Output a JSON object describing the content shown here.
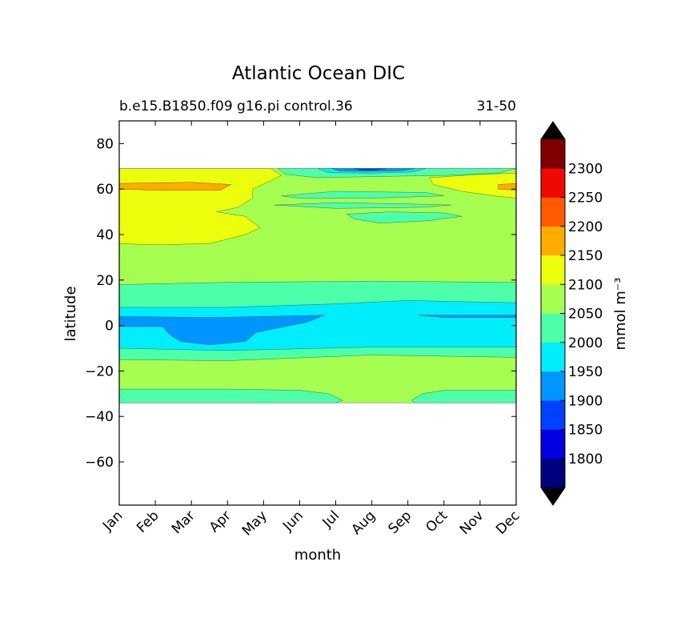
{
  "chart_data": {
    "type": "heatmap",
    "title": "Atlantic Ocean DIC",
    "subtitle_left": "b.e15.B1850.f09 g16.pi control.36",
    "subtitle_right": "31-50",
    "xlabel": "month",
    "ylabel": "latitude",
    "x_ticks": [
      "Jan",
      "Feb",
      "Mar",
      "Apr",
      "May",
      "Jun",
      "Jul",
      "Aug",
      "Sep",
      "Oct",
      "Nov",
      "Dec"
    ],
    "y_ticks": [
      80,
      60,
      40,
      20,
      0,
      -20,
      -40,
      -60
    ],
    "y_tick_labels": [
      "80",
      "60",
      "40",
      "20",
      "0",
      "−20",
      "−40",
      "−60"
    ],
    "xlim": [
      0,
      11
    ],
    "ylim": [
      -79,
      90
    ],
    "data_lat_range": [
      -34,
      69
    ],
    "colorbar": {
      "label": "mmol m⁻³",
      "levels": [
        1750,
        1800,
        1850,
        1900,
        1950,
        2000,
        2050,
        2100,
        2150,
        2200,
        2250,
        2300,
        2350
      ],
      "tick_values": [
        1800,
        1850,
        1900,
        1950,
        2000,
        2050,
        2100,
        2150,
        2200,
        2250,
        2300
      ],
      "tick_labels": [
        "1800",
        "1850",
        "1900",
        "1950",
        "2000",
        "2050",
        "2100",
        "2150",
        "2200",
        "2250",
        "2300"
      ],
      "colors": [
        "#00007f",
        "#0000e0",
        "#0040ff",
        "#0095ff",
        "#00eefc",
        "#4dffa9",
        "#a6ff50",
        "#ebff0c",
        "#ffab00",
        "#ff5a00",
        "#ee0a00",
        "#7f0000"
      ],
      "extend_low_color": "#000000",
      "extend_high_color": "#000000"
    },
    "regions": [
      {
        "name": "band-2050-2100-south",
        "level": 2050,
        "points": [
          [
            0,
            -34
          ],
          [
            11,
            -34
          ],
          [
            11,
            69
          ],
          [
            0,
            69
          ]
        ]
      },
      {
        "name": "band-2000-2050-south",
        "level": 2000,
        "points": [
          [
            0,
            -34
          ],
          [
            6,
            -34
          ],
          [
            6.2,
            -33
          ],
          [
            5.8,
            -30
          ],
          [
            5,
            -28.5
          ],
          [
            3,
            -28
          ],
          [
            0,
            -28
          ]
        ]
      },
      {
        "name": "band-2000-2050-south-east",
        "level": 2000,
        "points": [
          [
            8.2,
            -34
          ],
          [
            11,
            -34
          ],
          [
            11,
            -28.5
          ],
          [
            9,
            -28.5
          ],
          [
            8.4,
            -30
          ],
          [
            8.1,
            -33
          ]
        ]
      },
      {
        "name": "band-2000-2050-eq",
        "level": 2000,
        "points": [
          [
            0,
            -15
          ],
          [
            3,
            -15.5
          ],
          [
            7,
            -13
          ],
          [
            11,
            -14
          ],
          [
            11,
            19
          ],
          [
            7,
            19.5
          ],
          [
            3,
            19
          ],
          [
            0,
            18
          ]
        ]
      },
      {
        "name": "band-1950-2000-eq",
        "level": 1950,
        "points": [
          [
            0,
            -10
          ],
          [
            3,
            -11
          ],
          [
            7,
            -9.5
          ],
          [
            11,
            -9.5
          ],
          [
            11,
            10
          ],
          [
            8,
            11
          ],
          [
            6,
            9.5
          ],
          [
            3,
            8
          ],
          [
            0,
            8
          ]
        ]
      },
      {
        "name": "band-1900-1950-eq",
        "level": 1900,
        "points": [
          [
            0,
            4
          ],
          [
            2.5,
            3.5
          ],
          [
            5.7,
            4.5
          ],
          [
            5.2,
            1.5
          ],
          [
            3.8,
            -3
          ],
          [
            3.5,
            -7
          ],
          [
            2.5,
            -8.5
          ],
          [
            1.7,
            -7
          ],
          [
            1.4,
            -4
          ],
          [
            1.2,
            -0.5
          ],
          [
            0,
            -0.5
          ]
        ]
      },
      {
        "name": "band-1900-1950-eq-east",
        "level": 1900,
        "points": [
          [
            8.3,
            4.5
          ],
          [
            11,
            4.5
          ],
          [
            11,
            3.5
          ],
          [
            9,
            3.5
          ]
        ]
      },
      {
        "name": "band-2000-2050-north-1",
        "level": 2000,
        "points": [
          [
            4.4,
            69
          ],
          [
            11,
            69
          ],
          [
            10.5,
            67
          ],
          [
            9,
            66
          ],
          [
            7,
            65.5
          ],
          [
            5.5,
            65
          ],
          [
            4.6,
            66.5
          ]
        ]
      },
      {
        "name": "band-2000-2050-north-2",
        "level": 2000,
        "points": [
          [
            4.5,
            57
          ],
          [
            6,
            59
          ],
          [
            8.5,
            58.5
          ],
          [
            9,
            57
          ],
          [
            7,
            56
          ],
          [
            5,
            56
          ]
        ]
      },
      {
        "name": "band-2000-2050-north-3",
        "level": 2000,
        "points": [
          [
            4.3,
            53
          ],
          [
            6,
            54
          ],
          [
            8,
            53.5
          ],
          [
            9.2,
            53
          ],
          [
            8.5,
            52
          ],
          [
            6,
            51.5
          ]
        ]
      },
      {
        "name": "band-2000-2050-north-4",
        "level": 2000,
        "points": [
          [
            6.3,
            49
          ],
          [
            7.5,
            50
          ],
          [
            9,
            49.5
          ],
          [
            9.5,
            48
          ],
          [
            8.5,
            46
          ],
          [
            7.2,
            45
          ],
          [
            6.5,
            47
          ]
        ]
      },
      {
        "name": "band-1950-2000-north",
        "level": 1950,
        "points": [
          [
            5.5,
            69
          ],
          [
            8.5,
            69
          ],
          [
            8.1,
            67.5
          ],
          [
            7,
            67
          ],
          [
            5.8,
            67.2
          ]
        ]
      },
      {
        "name": "band-1900-1950-north",
        "level": 1900,
        "points": [
          [
            5.9,
            69
          ],
          [
            8.2,
            69
          ],
          [
            7.8,
            68
          ],
          [
            6.8,
            67.8
          ],
          [
            6.1,
            68
          ]
        ]
      },
      {
        "name": "band-1850-1900-north",
        "level": 1850,
        "points": [
          [
            6.5,
            69
          ],
          [
            7.4,
            69
          ],
          [
            7.1,
            68.3
          ],
          [
            6.7,
            68.3
          ]
        ]
      },
      {
        "name": "band-2100-2150-north-west",
        "level": 2100,
        "points": [
          [
            0,
            69
          ],
          [
            4.2,
            69
          ],
          [
            4.3,
            68
          ],
          [
            4.5,
            66
          ],
          [
            4.1,
            63
          ],
          [
            3.7,
            60
          ],
          [
            3.7,
            56
          ],
          [
            3.3,
            52
          ],
          [
            2.7,
            50
          ],
          [
            3.5,
            48
          ],
          [
            3.9,
            43
          ],
          [
            3.5,
            40
          ],
          [
            2.5,
            36
          ],
          [
            1,
            35.5
          ],
          [
            0,
            36
          ]
        ]
      },
      {
        "name": "band-2100-2150-north-east",
        "level": 2100,
        "points": [
          [
            11,
            67
          ],
          [
            10,
            66.5
          ],
          [
            8.6,
            65
          ],
          [
            8.7,
            62
          ],
          [
            9.5,
            59
          ],
          [
            10.4,
            57
          ],
          [
            11,
            56
          ]
        ]
      },
      {
        "name": "band-2150-2200-north-west",
        "level": 2150,
        "points": [
          [
            0,
            62.5
          ],
          [
            2,
            63
          ],
          [
            3.1,
            62
          ],
          [
            2.8,
            59.5
          ],
          [
            1,
            59.5
          ],
          [
            0,
            60
          ]
        ]
      },
      {
        "name": "band-2150-2200-north-east",
        "level": 2150,
        "points": [
          [
            11,
            62.5
          ],
          [
            10.5,
            62
          ],
          [
            10.5,
            60
          ],
          [
            11,
            59.5
          ]
        ]
      }
    ]
  }
}
